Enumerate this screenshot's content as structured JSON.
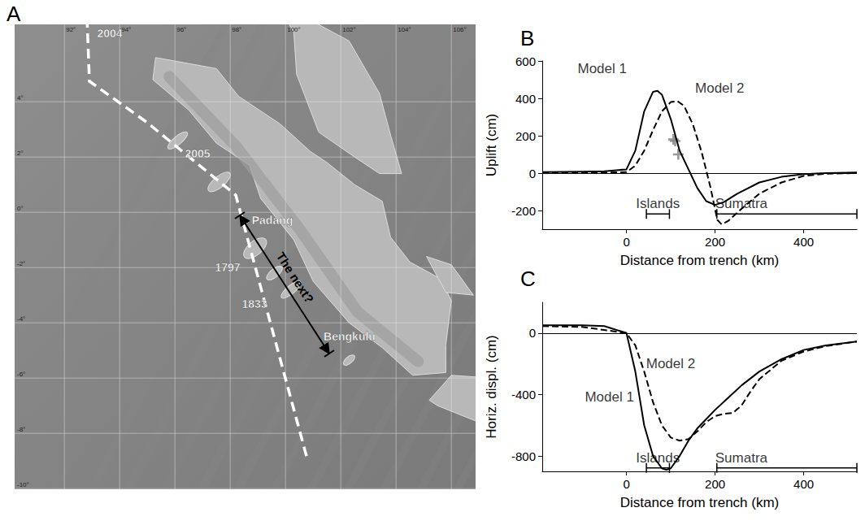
{
  "map": {
    "panel": "A",
    "labels": [
      "2004",
      "2005",
      "Padang",
      "1797",
      "1833",
      "Bengkulu"
    ],
    "arrow_label": "The next?",
    "lon_ticks": [
      {
        "value": 92,
        "label": "92°"
      },
      {
        "value": 94,
        "label": "94°"
      },
      {
        "value": 96,
        "label": "96°"
      },
      {
        "value": 98,
        "label": "98°"
      },
      {
        "value": 100,
        "label": "100°"
      },
      {
        "value": 102,
        "label": "102°"
      },
      {
        "value": 104,
        "label": "104°"
      },
      {
        "value": 106,
        "label": "106°"
      }
    ],
    "lat_ticks": [
      {
        "value": 4,
        "label": "4°"
      },
      {
        "value": 2,
        "label": "2°"
      },
      {
        "value": 0,
        "label": "0°"
      },
      {
        "value": -2,
        "label": "-2°"
      },
      {
        "value": -4,
        "label": "-4°"
      },
      {
        "value": -6,
        "label": "-6°"
      },
      {
        "value": -8,
        "label": "-8°"
      },
      {
        "value": -10,
        "label": "-10°"
      }
    ]
  },
  "chart_data": [
    {
      "panel": "B",
      "type": "line",
      "x_label": "Distance from trench (km)",
      "y_label": "Uplift (cm)",
      "xlim": [
        -190,
        520
      ],
      "xticks": [
        0,
        200,
        400
      ],
      "ylim": [
        -300,
        600
      ],
      "yticks": [
        -200,
        0,
        200,
        400,
        600
      ],
      "grid": false,
      "hlines": [
        0
      ],
      "series": [
        {
          "name": "Model 1",
          "color": "#000000",
          "line_style": "solid",
          "x": [
            -190,
            -100,
            -50,
            0,
            20,
            40,
            60,
            70,
            80,
            100,
            120,
            140,
            160,
            180,
            200,
            220,
            250,
            300,
            350,
            400,
            450,
            520
          ],
          "values": [
            5,
            8,
            10,
            20,
            120,
            330,
            435,
            440,
            420,
            290,
            120,
            20,
            -80,
            -150,
            -170,
            -155,
            -110,
            -50,
            -20,
            -5,
            0,
            3
          ]
        },
        {
          "name": "Model 2",
          "color": "#000000",
          "line_style": "dashed",
          "x": [
            -190,
            -100,
            0,
            20,
            40,
            60,
            80,
            100,
            115,
            130,
            150,
            170,
            190,
            205,
            215,
            230,
            260,
            300,
            350,
            400,
            450,
            520
          ],
          "values": [
            0,
            0,
            5,
            40,
            120,
            230,
            330,
            380,
            385,
            360,
            260,
            110,
            -80,
            -250,
            -275,
            -255,
            -190,
            -110,
            -50,
            -15,
            -3,
            0
          ]
        },
        {
          "type": "scatter",
          "marker": "cross",
          "color": "#808080",
          "x": [
            106,
            110,
            117
          ],
          "values": [
            180,
            172,
            100
          ]
        }
      ],
      "annotations": [
        {
          "text": "Islands",
          "x": [
            45,
            97
          ]
        },
        {
          "text": "Sumatra",
          "x": [
            204,
            520
          ]
        }
      ]
    },
    {
      "panel": "C",
      "type": "line",
      "x_label": "Distance from trench (km)",
      "y_label": "Horiz. displ. (cm)",
      "xlim": [
        -190,
        520
      ],
      "xticks": [
        0,
        200,
        400
      ],
      "ylim": [
        -900,
        200
      ],
      "yticks": [
        -800,
        -400,
        0
      ],
      "grid": false,
      "hlines": [
        0
      ],
      "series": [
        {
          "name": "Model 1",
          "color": "#000000",
          "line_style": "solid",
          "x": [
            -190,
            -100,
            -50,
            0,
            20,
            40,
            60,
            80,
            90,
            100,
            120,
            140,
            160,
            180,
            200,
            230,
            260,
            300,
            350,
            400,
            450,
            520
          ],
          "values": [
            50,
            50,
            45,
            0,
            -250,
            -600,
            -800,
            -880,
            -890,
            -880,
            -800,
            -700,
            -620,
            -560,
            -500,
            -420,
            -340,
            -250,
            -170,
            -110,
            -80,
            -55
          ]
        },
        {
          "name": "Model 2",
          "color": "#000000",
          "line_style": "dashed",
          "x": [
            -190,
            -100,
            0,
            20,
            40,
            60,
            80,
            100,
            120,
            140,
            160,
            180,
            200,
            220,
            240,
            260,
            280,
            300,
            350,
            400,
            450,
            520
          ],
          "values": [
            45,
            40,
            0,
            -80,
            -250,
            -450,
            -600,
            -680,
            -700,
            -690,
            -640,
            -580,
            -540,
            -525,
            -520,
            -470,
            -380,
            -300,
            -180,
            -120,
            -85,
            -55
          ]
        }
      ],
      "annotations": [
        {
          "text": "Islands",
          "x": [
            45,
            97
          ]
        },
        {
          "text": "Sumatra",
          "x": [
            204,
            520
          ]
        }
      ]
    }
  ]
}
